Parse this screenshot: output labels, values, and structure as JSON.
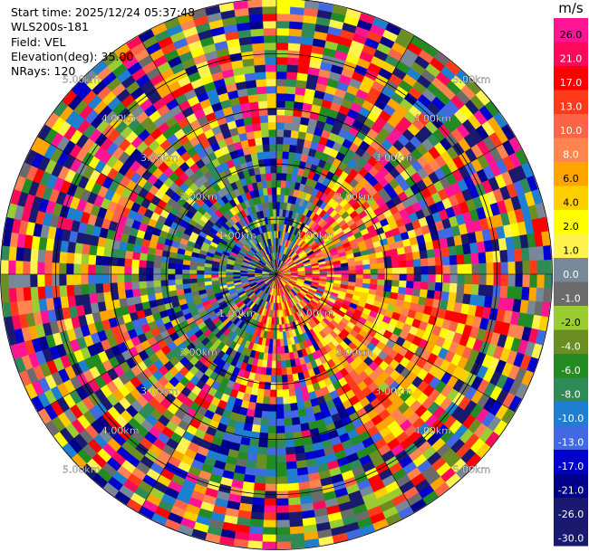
{
  "header": {
    "start_time": "Start time: 2025/12/24 05:37:48",
    "instrument": "WLS200s-181",
    "field": "Field: VEL",
    "elevation": "Elevation(deg): 35.00",
    "nrays": "NRays: 120"
  },
  "chart_data": {
    "type": "heatmap",
    "projection": "polar-ppi",
    "field": "VEL",
    "units": "m/s",
    "nrays": 120,
    "elevation_deg": 35.0,
    "range_rings_km": [
      1,
      2,
      3,
      4,
      5
    ],
    "range_ring_labels": [
      "1.00km",
      "2.00km",
      "3.00km",
      "4.00km",
      "5.00km"
    ],
    "colorbar": {
      "unit_label": "m/s",
      "ticks": [
        "26.0",
        "21.0",
        "17.0",
        "13.0",
        "10.0",
        "8.0",
        "6.0",
        "4.0",
        "2.0",
        "1.0",
        "0.0",
        "-1.0",
        "-2.0",
        "-4.0",
        "-6.0",
        "-8.0",
        "-10.0",
        "-13.0",
        "-17.0",
        "-21.0",
        "-26.0",
        "-30.0"
      ],
      "colors": [
        "#FF1493",
        "#FF0A5A",
        "#FF0000",
        "#FF3A1A",
        "#FF6347",
        "#FF8450",
        "#FFA500",
        "#FFD000",
        "#FFFF00",
        "#FFF44F",
        "#778899",
        "#6B6B6B",
        "#9ACD32",
        "#6B8E23",
        "#228B22",
        "#2E8B57",
        "#1E7FD0",
        "#4169E1",
        "#0000CD",
        "#00008B",
        "#191970",
        "#191970"
      ]
    },
    "grid": true
  }
}
